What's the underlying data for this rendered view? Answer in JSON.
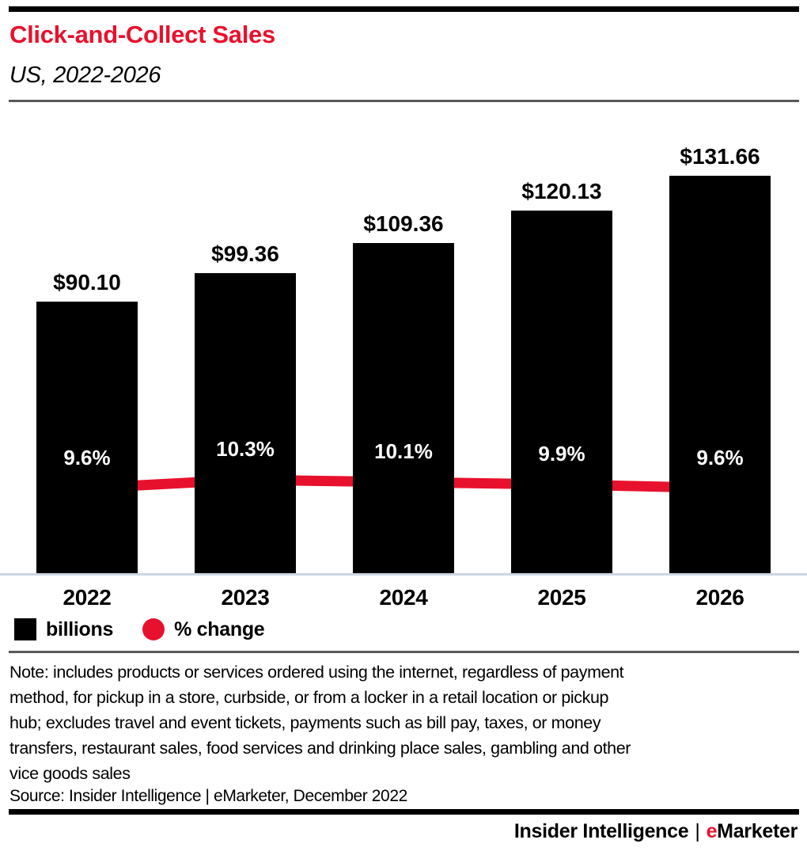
{
  "header": {
    "title": "Click-and-Collect Sales",
    "subtitle": "US, 2022-2026"
  },
  "chart_data": {
    "type": "bar",
    "title": "Click-and-Collect Sales",
    "subtitle": "US, 2022-2026",
    "categories": [
      "2022",
      "2023",
      "2024",
      "2025",
      "2026"
    ],
    "series": [
      {
        "name": "billions",
        "type": "bar",
        "unit": "US$ billions",
        "values": [
          90.1,
          99.36,
          109.36,
          120.13,
          131.66
        ],
        "labels": [
          "$90.10",
          "$99.36",
          "$109.36",
          "$120.13",
          "$131.66"
        ],
        "color": "#000000"
      },
      {
        "name": "% change",
        "type": "line",
        "unit": "percent",
        "values": [
          9.6,
          10.3,
          10.1,
          9.9,
          9.6
        ],
        "labels": [
          "9.6%",
          "10.3%",
          "10.1%",
          "9.9%",
          "9.6%"
        ],
        "color": "#e8112d"
      }
    ],
    "legend_position": "bottom-left",
    "grid": false,
    "y_axis": {
      "visible": false,
      "min": 0
    }
  },
  "legend": {
    "items": [
      {
        "label": "billions",
        "swatch": "square",
        "color": "#000000"
      },
      {
        "label": "% change",
        "swatch": "circle",
        "color": "#e8112d"
      }
    ]
  },
  "note": {
    "lines": [
      "Note: includes products or services ordered using the internet, regardless of payment",
      "method, for pickup in a store, curbside, or from a locker in a retail location or pickup",
      "hub; excludes travel and event tickets, payments such as bill pay, taxes, or money",
      "transfers, restaurant sales, food services and drinking place sales, gambling and other",
      "vice goods sales"
    ],
    "source": "Source: Insider Intelligence | eMarketer, December 2022"
  },
  "footer": {
    "brand_left": "Insider Intelligence",
    "separator": "|",
    "brand_right_initial": "e",
    "brand_right_rest": "Marketer"
  },
  "colors": {
    "accent_red": "#e8112d",
    "bar_black": "#000000",
    "axis_line": "#ccd6e3",
    "rule_dark": "#58595b"
  }
}
